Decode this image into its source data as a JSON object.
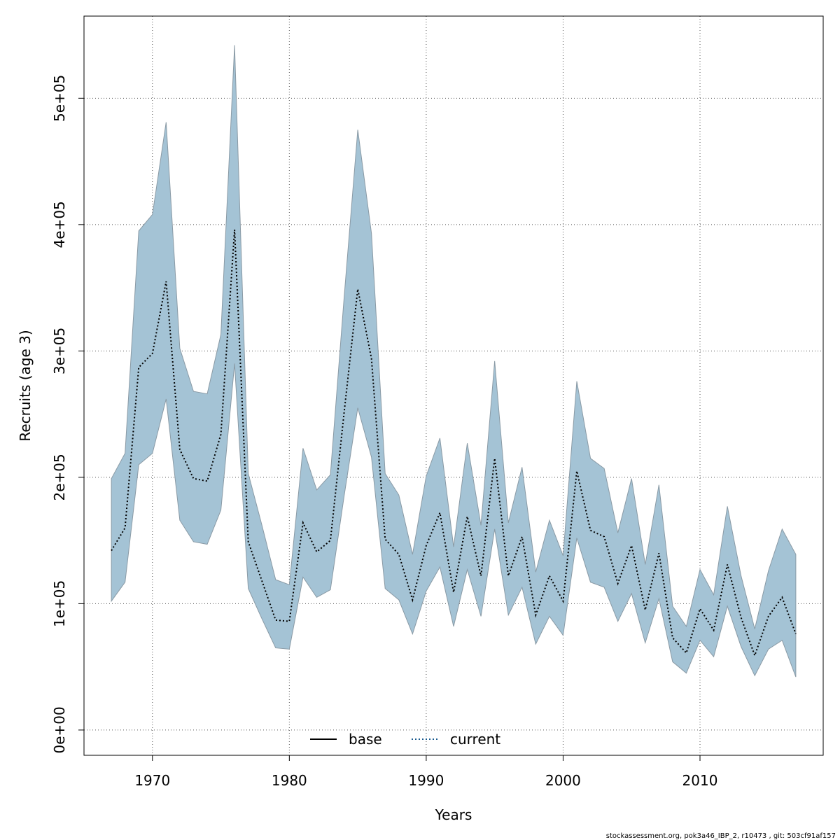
{
  "chart_data": {
    "type": "area",
    "title": "",
    "xlabel": "Years",
    "ylabel": "Recruits (age 3)",
    "xlim": [
      1965,
      2019
    ],
    "ylim": [
      -20000,
      565000
    ],
    "x_ticks": [
      1970,
      1980,
      1990,
      2000,
      2010
    ],
    "x_tick_labels": [
      "1970",
      "1980",
      "1990",
      "2000",
      "2010"
    ],
    "y_ticks": [
      0,
      100000,
      200000,
      300000,
      400000,
      500000
    ],
    "y_tick_labels": [
      "0e+00",
      "1e+05",
      "2e+05",
      "3e+05",
      "4e+05",
      "5e+05"
    ],
    "grid": true,
    "x": [
      1967,
      1968,
      1969,
      1970,
      1971,
      1972,
      1973,
      1974,
      1975,
      1976,
      1977,
      1978,
      1979,
      1980,
      1981,
      1982,
      1983,
      1984,
      1985,
      1986,
      1987,
      1988,
      1989,
      1990,
      1991,
      1992,
      1993,
      1994,
      1995,
      1996,
      1997,
      1998,
      1999,
      2000,
      2001,
      2002,
      2003,
      2004,
      2005,
      2006,
      2007,
      2008,
      2009,
      2010,
      2011,
      2012,
      2013,
      2014,
      2015,
      2016,
      2017
    ],
    "series": [
      {
        "name": "current",
        "style": "dotted",
        "color": "#000000",
        "values": [
          142000,
          160000,
          287000,
          298000,
          355000,
          222000,
          199000,
          197000,
          234000,
          396000,
          149000,
          118000,
          87000,
          86000,
          164000,
          141000,
          150000,
          251000,
          349000,
          294000,
          151000,
          139000,
          103000,
          146000,
          172000,
          109000,
          169000,
          122000,
          215000,
          122000,
          153000,
          91000,
          122000,
          102000,
          205000,
          158000,
          153000,
          116000,
          146000,
          95000,
          140000,
          73000,
          61000,
          96000,
          79000,
          131000,
          89000,
          59000,
          90000,
          105000,
          76000
        ]
      }
    ],
    "band": {
      "name": "confidence interval",
      "color": "#a4c3d5",
      "upper": [
        199000,
        219000,
        395000,
        408000,
        481000,
        302000,
        268000,
        266000,
        313000,
        542000,
        203000,
        162000,
        119000,
        115000,
        223000,
        190000,
        202000,
        342000,
        475000,
        393000,
        203000,
        186000,
        139000,
        201000,
        231000,
        145000,
        227000,
        162000,
        292000,
        164000,
        208000,
        125000,
        166000,
        138000,
        276000,
        215000,
        207000,
        156000,
        199000,
        131000,
        194000,
        98000,
        82000,
        127000,
        107000,
        177000,
        122000,
        80000,
        126000,
        159000,
        139000
      ],
      "lower": [
        102000,
        117000,
        210000,
        219000,
        262000,
        166000,
        149000,
        147000,
        174000,
        290000,
        112000,
        88000,
        65000,
        64000,
        121000,
        105000,
        111000,
        185000,
        255000,
        216000,
        112000,
        103000,
        76000,
        110000,
        129000,
        82000,
        127000,
        90000,
        159000,
        91000,
        113000,
        68000,
        90000,
        75000,
        152000,
        117000,
        113000,
        86000,
        108000,
        69000,
        104000,
        54000,
        45000,
        71000,
        58000,
        98000,
        66000,
        43000,
        64000,
        71000,
        42000
      ]
    },
    "legend": {
      "position": "bottom-center",
      "entries": [
        {
          "label": "base",
          "style": "solid",
          "color": "#000000"
        },
        {
          "label": "current",
          "style": "dotted",
          "color": "#1a5b8f"
        }
      ]
    }
  },
  "footer": {
    "text": "stockassessment.org, pok3a46_IBP_2, r10473 , git: 503cf91af157"
  }
}
